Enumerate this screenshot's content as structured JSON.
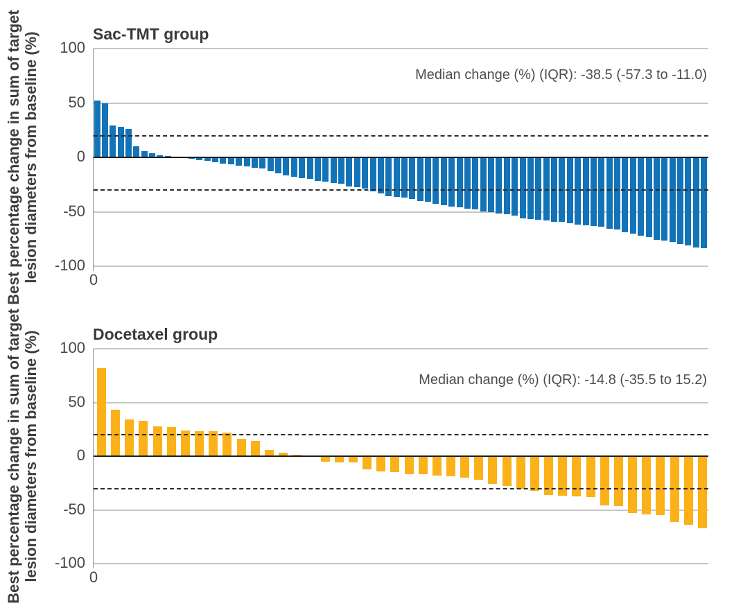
{
  "figure": {
    "ylabel": {
      "line1": "Best percentage change in sum of target",
      "line2": "lesion diameters from baseline (%)"
    },
    "xtick_label": "0"
  },
  "chart_data": [
    {
      "type": "bar",
      "title": "Sac-TMT group",
      "annotation": "Median change (%) (IQR): -38.5 (-57.3 to -11.0)",
      "median_change_pct": -38.5,
      "iqr": [
        -57.3,
        -11.0
      ],
      "bar_color": "#1273B7",
      "ylim": [
        -100,
        100
      ],
      "yticks": [
        100,
        50,
        0,
        -50,
        -100
      ],
      "reference_lines": [
        20,
        -30
      ],
      "xtick_label": "0",
      "n_bars": 78,
      "values": [
        52,
        50,
        29,
        28,
        26,
        10,
        6,
        4,
        2,
        1,
        0.5,
        -0.5,
        -1.5,
        -2.5,
        -3.5,
        -4.5,
        -5.5,
        -6.5,
        -7.5,
        -8.5,
        -9.5,
        -10.5,
        -12.5,
        -14.5,
        -16.5,
        -18,
        -19,
        -20,
        -21.5,
        -22.5,
        -23.5,
        -24.5,
        -26.5,
        -27.5,
        -28.5,
        -31.5,
        -33,
        -35.5,
        -36.5,
        -37,
        -38.5,
        -40,
        -41,
        -42.5,
        -44,
        -45,
        -46,
        -47,
        -48,
        -49.5,
        -50.5,
        -51.5,
        -52.5,
        -53.5,
        -56,
        -57,
        -57.5,
        -58,
        -59,
        -59.5,
        -60.5,
        -61.5,
        -62.5,
        -63,
        -63.5,
        -65.5,
        -66.5,
        -68.5,
        -70,
        -72,
        -73.5,
        -75.5,
        -76.5,
        -78,
        -79.5,
        -81,
        -82.5,
        -83.5
      ]
    },
    {
      "type": "bar",
      "title": "Docetaxel group",
      "annotation": "Median change (%) (IQR): -14.8 (-35.5 to 15.2)",
      "median_change_pct": -14.8,
      "iqr": [
        -35.5,
        15.2
      ],
      "bar_color": "#FBB118",
      "ylim": [
        -100,
        100
      ],
      "yticks": [
        100,
        50,
        0,
        -50,
        -100
      ],
      "reference_lines": [
        20,
        -30
      ],
      "xtick_label": "0",
      "n_bars": 44,
      "values": [
        82,
        43,
        34,
        33,
        28,
        27,
        24,
        23,
        23,
        22,
        16,
        14,
        6,
        3,
        1,
        -0.3,
        -5,
        -6,
        -6,
        -12,
        -14,
        -15,
        -17,
        -17,
        -18,
        -19,
        -20,
        -22,
        -26,
        -28,
        -30,
        -32,
        -36,
        -37,
        -37.5,
        -38,
        -46,
        -46.5,
        -53,
        -54,
        -55,
        -61,
        -64,
        -67
      ]
    }
  ]
}
